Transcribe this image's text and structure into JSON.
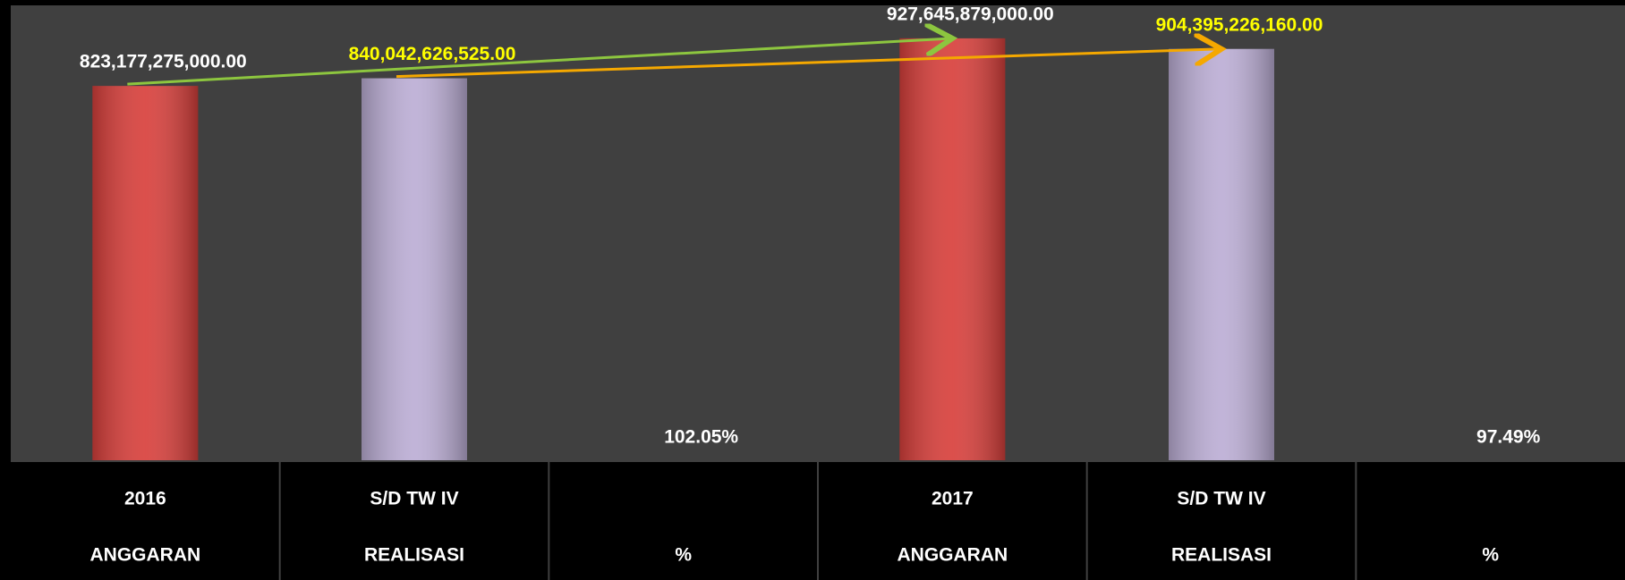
{
  "chart_data": {
    "type": "bar",
    "categories": [
      [
        "2016",
        "ANGGARAN"
      ],
      [
        "S/D TW IV",
        "REALISASI"
      ],
      [
        null,
        "%"
      ],
      [
        "2017",
        "ANGGARAN"
      ],
      [
        "S/D TW IV",
        "REALISASI"
      ],
      [
        null,
        "%"
      ]
    ],
    "values": [
      823177275000,
      840042626525,
      102.05,
      927645879000,
      904395226160,
      97.49
    ],
    "value_labels": [
      "823,177,275,000.00",
      "840,042,626,525.00",
      "102.05%",
      "927,645,879,000.00",
      "904,395,226,160.00",
      "97.49%"
    ],
    "colors": [
      "#d8403c",
      "#bcaed5",
      "#bcaed5",
      "#d8403c",
      "#bcaed5",
      "#bcaed5"
    ],
    "label_colors": [
      "#ffffff",
      "#ffff00",
      "#ffffff",
      "#ffffff",
      "#ffff00",
      "#ffffff"
    ],
    "ylim": [
      0,
      1000000000000
    ]
  }
}
